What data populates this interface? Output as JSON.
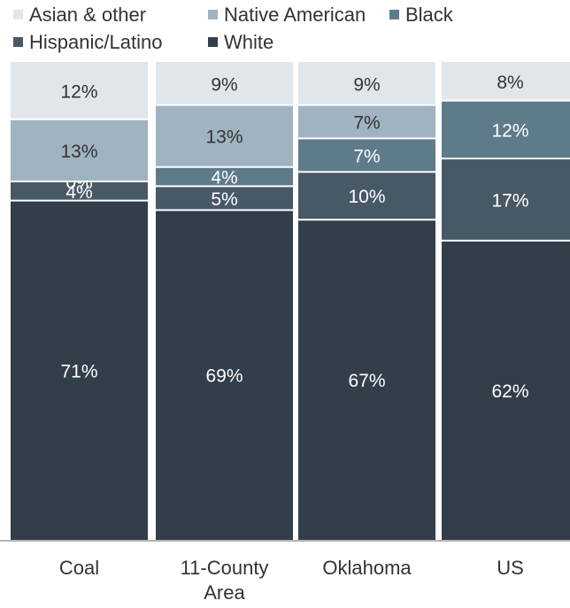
{
  "chart_data": {
    "type": "bar",
    "stacked": true,
    "percent": true,
    "title": "",
    "xlabel": "",
    "ylabel": "",
    "ylim": [
      0,
      100
    ],
    "grid": false,
    "legend_position": "top-left",
    "categories": [
      [
        "Coal"
      ],
      [
        "11-County",
        "Area"
      ],
      [
        "Oklahoma"
      ],
      [
        "US"
      ]
    ],
    "series": [
      {
        "name": "White",
        "color": "#323f4a",
        "label_color": "#ffffff",
        "values": [
          71,
          69,
          67,
          62
        ]
      },
      {
        "name": "Hispanic/Latino",
        "color": "#485966",
        "label_color": "#ffffff",
        "values": [
          4,
          5,
          10,
          17
        ]
      },
      {
        "name": "Black",
        "color": "#5e7b8c",
        "label_color": "#ffffff",
        "values": [
          0,
          4,
          7,
          12
        ]
      },
      {
        "name": "Native American",
        "color": "#a0b3c0",
        "label_color": "#333333",
        "values": [
          13,
          13,
          7,
          0
        ]
      },
      {
        "name": "Asian & other",
        "color": "#e0e6ea",
        "label_color": "#333333",
        "values": [
          12,
          9,
          9,
          8
        ]
      }
    ],
    "data_labels": [
      [
        "71%",
        "4%",
        "0%",
        "13%",
        "12%"
      ],
      [
        "69%",
        "5%",
        "4%",
        "13%",
        "9%"
      ],
      [
        "67%",
        "10%",
        "7%",
        "7%",
        "9%"
      ],
      [
        "62%",
        "17%",
        "12%",
        "",
        "8%"
      ]
    ]
  }
}
